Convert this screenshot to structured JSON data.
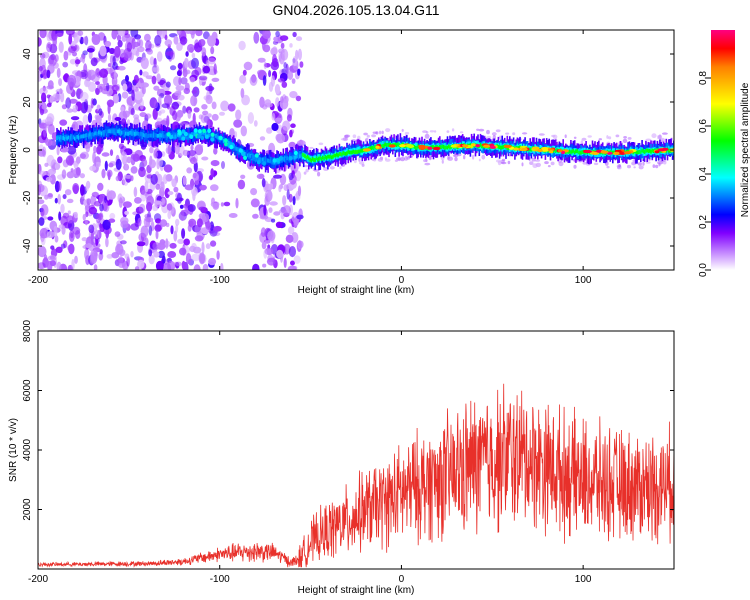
{
  "chart_data": [
    {
      "type": "heatmap",
      "title": "GN04.2026.105.13.04.G11",
      "xlabel": "Height of straight line (km)",
      "ylabel": "Frequency (Hz)",
      "xlim": [
        -200,
        150
      ],
      "ylim": [
        -50,
        50
      ],
      "xticks": [
        -200,
        -100,
        0,
        100
      ],
      "yticks": [
        -40,
        -20,
        0,
        20,
        40
      ],
      "colorbar": {
        "label": "Normalized spectral amplitude",
        "range": [
          0,
          1
        ],
        "ticks": [
          0.0,
          0.2,
          0.4,
          0.6,
          0.8
        ],
        "colors": [
          "#ffffff",
          "#c080ff",
          "#8000ff",
          "#0000ff",
          "#0080ff",
          "#00ffff",
          "#00ff80",
          "#00ff00",
          "#80ff00",
          "#ffff00",
          "#ffc000",
          "#ff8000",
          "#ff0000",
          "#ff0080"
        ]
      },
      "ridge": {
        "x": [
          -180,
          -160,
          -140,
          -120,
          -110,
          -100,
          -90,
          -80,
          -70,
          -60,
          -55,
          -50,
          -40,
          -30,
          -20,
          -10,
          0,
          10,
          20,
          40,
          60,
          80,
          100,
          120,
          150
        ],
        "y": [
          5,
          8,
          6,
          6,
          7,
          5,
          0,
          -4,
          -5,
          -3,
          -2,
          -4,
          -3,
          -1,
          0,
          2,
          2,
          1,
          1,
          2,
          1,
          0,
          -1,
          -1,
          0
        ]
      },
      "scatter_region": {
        "x": [
          -200,
          -55
        ],
        "y": [
          -50,
          50
        ]
      }
    },
    {
      "type": "line",
      "xlabel": "Height of straight line (km)",
      "ylabel": "SNR (10 * v/v)",
      "xlim": [
        -200,
        150
      ],
      "ylim": [
        0,
        8000
      ],
      "xticks": [
        -200,
        -100,
        0,
        100
      ],
      "yticks": [
        2000,
        4000,
        6000,
        8000
      ],
      "series": [
        {
          "name": "SNR",
          "color": "#e8302a",
          "envelope_x": [
            -200,
            -180,
            -160,
            -140,
            -120,
            -100,
            -90,
            -80,
            -70,
            -60,
            -55,
            -50,
            -40,
            -30,
            -20,
            -10,
            0,
            10,
            20,
            30,
            40,
            50,
            60,
            70,
            80,
            90,
            100,
            110,
            120,
            130,
            140,
            150
          ],
          "envelope_mean": [
            150,
            160,
            170,
            180,
            250,
            500,
            550,
            600,
            550,
            200,
            400,
            900,
            1300,
            1600,
            2000,
            2200,
            2500,
            2800,
            3000,
            3200,
            3500,
            3700,
            3800,
            3700,
            3500,
            3200,
            3000,
            2900,
            2800,
            2800,
            2800,
            2900
          ],
          "envelope_amp": [
            80,
            80,
            100,
            100,
            150,
            300,
            400,
            450,
            350,
            200,
            600,
            900,
            1200,
            1400,
            1600,
            1800,
            2000,
            2200,
            2400,
            2600,
            2800,
            2900,
            2900,
            2700,
            2600,
            2500,
            2400,
            2300,
            2200,
            2200,
            2200,
            2200
          ]
        }
      ]
    }
  ]
}
